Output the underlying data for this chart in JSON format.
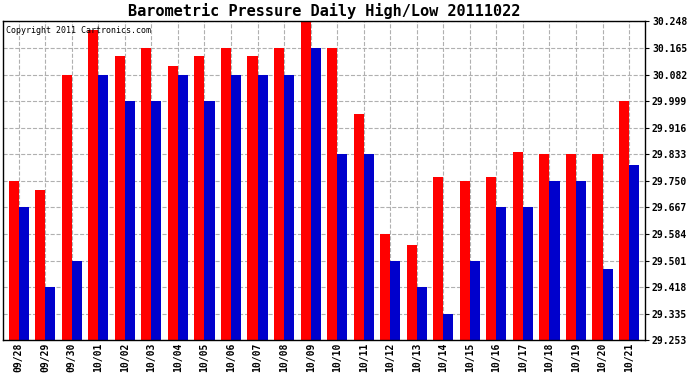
{
  "title": "Barometric Pressure Daily High/Low 20111022",
  "copyright": "Copyright 2011 Cartronics.com",
  "categories": [
    "09/28",
    "09/29",
    "09/30",
    "10/01",
    "10/02",
    "10/03",
    "10/04",
    "10/05",
    "10/06",
    "10/07",
    "10/08",
    "10/09",
    "10/10",
    "10/11",
    "10/12",
    "10/13",
    "10/14",
    "10/15",
    "10/16",
    "10/17",
    "10/18",
    "10/19",
    "10/20",
    "10/21"
  ],
  "high_values": [
    29.75,
    29.72,
    30.082,
    30.22,
    30.14,
    30.165,
    30.11,
    30.14,
    30.165,
    30.14,
    30.165,
    30.248,
    30.165,
    29.96,
    29.584,
    29.55,
    29.762,
    29.75,
    29.762,
    29.84,
    29.833,
    29.833,
    29.833,
    29.999
  ],
  "low_values": [
    29.668,
    29.418,
    29.501,
    30.082,
    29.999,
    30.0,
    30.082,
    30.0,
    30.082,
    30.082,
    30.082,
    30.165,
    29.833,
    29.833,
    29.501,
    29.418,
    29.335,
    29.501,
    29.668,
    29.668,
    29.75,
    29.75,
    29.474,
    29.8
  ],
  "ylim_min": 29.253,
  "ylim_max": 30.248,
  "yticks": [
    29.253,
    29.335,
    29.418,
    29.501,
    29.584,
    29.667,
    29.75,
    29.833,
    29.916,
    29.999,
    30.082,
    30.165,
    30.248
  ],
  "bar_width": 0.38,
  "high_color": "#ff0000",
  "low_color": "#0000cc",
  "bg_color": "#ffffff",
  "grid_color": "#b0b0b0",
  "title_fontsize": 11,
  "tick_fontsize": 7,
  "copyright_fontsize": 6
}
